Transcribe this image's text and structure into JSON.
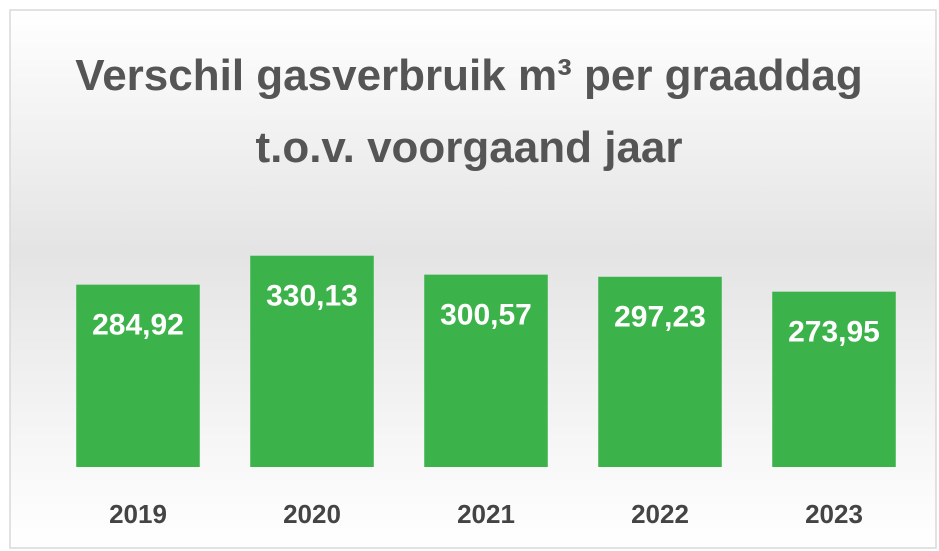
{
  "chart_data": {
    "type": "bar",
    "title": "Verschil gasverbruik m³ per graaddag t.o.v. voorgaand jaar",
    "categories": [
      "2019",
      "2020",
      "2021",
      "2022",
      "2023"
    ],
    "values": [
      284.92,
      330.13,
      300.57,
      297.23,
      273.95
    ],
    "value_labels": [
      "284,92",
      "330,13",
      "300,57",
      "297,23",
      "273,95"
    ],
    "color": "#3cb34a",
    "ylim": [
      0,
      350
    ]
  }
}
